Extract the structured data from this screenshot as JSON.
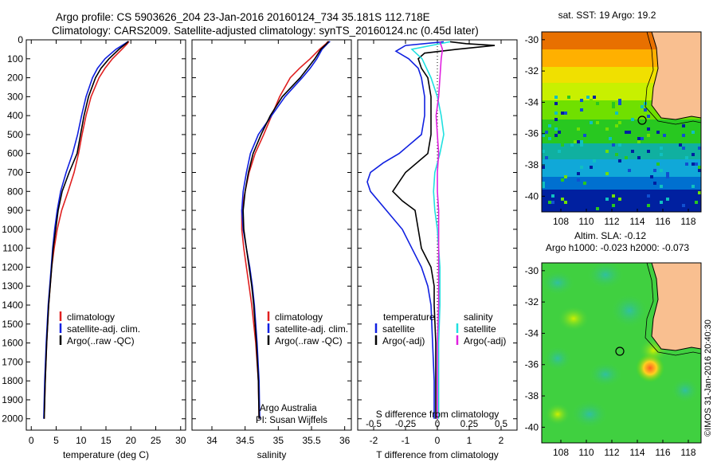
{
  "header": {
    "line1": "Argo profile: CS 5903626_204 23-Jan-2016 20160124_734 35.181S 112.718E",
    "line2": "Climatology: CARS2009. Satellite-adjusted climatology: synTS_20160124.nc (0.45d later)"
  },
  "credit": "Argo Australia",
  "pi": "PI: Susan Wijffels",
  "stamp": "©IMOS 31-Jan-2016 20:40:30",
  "colors": {
    "clim": "#e02020",
    "sat": "#1020e0",
    "argo": "#000000",
    "sat_s": "#20e0e0",
    "argo_s": "#e020e0"
  },
  "chart_data": [
    {
      "type": "line",
      "xlabel": "temperature (deg C)",
      "ylabel": "",
      "xlim": [
        -1,
        31
      ],
      "ylim": [
        2060,
        0
      ],
      "x_ticks": [
        "0",
        "5",
        "10",
        "15",
        "20",
        "25",
        "30"
      ],
      "y_ticks": [
        "0",
        "100",
        "200",
        "300",
        "400",
        "500",
        "600",
        "700",
        "800",
        "900",
        "1000",
        "1100",
        "1200",
        "1300",
        "1400",
        "1500",
        "1600",
        "1700",
        "1800",
        "1900",
        "2000"
      ],
      "legend": [
        "climatology",
        "satellite-adj. clim.",
        "Argo(..raw -QC)"
      ],
      "series": [
        {
          "name": "climatology",
          "color": "#e02020",
          "depth": [
            8,
            20,
            50,
            100,
            150,
            200,
            300,
            400,
            500,
            600,
            700,
            800,
            900,
            1000,
            1100,
            1200,
            1400,
            1600,
            1800,
            2000
          ],
          "values": [
            19.6,
            19.3,
            18.2,
            16.3,
            14.8,
            13.6,
            12.0,
            11.0,
            10.2,
            9.5,
            8.6,
            7.4,
            6.1,
            5.2,
            4.6,
            4.1,
            3.5,
            3.1,
            2.8,
            2.6
          ]
        },
        {
          "name": "satellite-adj. clim.",
          "color": "#1020e0",
          "depth": [
            8,
            20,
            50,
            100,
            150,
            200,
            300,
            400,
            500,
            600,
            700,
            800,
            900,
            1000,
            1100,
            1200,
            1400,
            1600,
            1800,
            2000
          ],
          "values": [
            19.5,
            18.8,
            17.0,
            14.8,
            13.3,
            12.3,
            11.0,
            10.1,
            9.3,
            8.3,
            7.0,
            5.9,
            5.2,
            4.7,
            4.3,
            4.0,
            3.4,
            3.0,
            2.7,
            2.5
          ]
        },
        {
          "name": "Argo(..raw -QC)",
          "color": "#000000",
          "depth": [
            8,
            20,
            50,
            100,
            150,
            200,
            300,
            400,
            500,
            600,
            700,
            800,
            900,
            1000,
            1100,
            1200,
            1400,
            1600,
            1800,
            2000
          ],
          "values": [
            19.5,
            19.0,
            17.6,
            15.6,
            14.0,
            12.9,
            11.5,
            10.6,
            9.9,
            9.2,
            7.6,
            6.2,
            5.4,
            4.9,
            4.4,
            4.1,
            3.5,
            3.1,
            2.8,
            2.6
          ]
        }
      ]
    },
    {
      "type": "line",
      "xlabel": "salinity",
      "ylabel": "",
      "xlim": [
        33.7,
        36.1
      ],
      "ylim": [
        2060,
        0
      ],
      "x_ticks": [
        "34",
        "34.5",
        "35",
        "35.5",
        "36"
      ],
      "legend": [
        "climatology",
        "satellite-adj. clim.",
        "Argo(..raw -QC)"
      ],
      "series": [
        {
          "name": "climatology",
          "color": "#e02020",
          "depth": [
            8,
            20,
            50,
            100,
            150,
            200,
            300,
            400,
            500,
            600,
            700,
            800,
            900,
            1000,
            1100,
            1200,
            1300,
            1400,
            1600,
            1800,
            2000
          ],
          "values": [
            35.75,
            35.72,
            35.62,
            35.48,
            35.32,
            35.18,
            35.02,
            34.9,
            34.78,
            34.65,
            34.56,
            34.5,
            34.45,
            34.45,
            34.48,
            34.52,
            34.56,
            34.6,
            34.66,
            34.7,
            34.71
          ]
        },
        {
          "name": "satellite-adj. clim.",
          "color": "#1020e0",
          "depth": [
            8,
            20,
            50,
            100,
            150,
            200,
            300,
            400,
            500,
            600,
            700,
            800,
            900,
            1000,
            1100,
            1200,
            1300,
            1400,
            1600,
            1800,
            2000
          ],
          "values": [
            35.78,
            35.74,
            35.66,
            35.58,
            35.48,
            35.36,
            35.1,
            34.9,
            34.7,
            34.58,
            34.52,
            34.47,
            34.45,
            34.47,
            34.52,
            34.57,
            34.61,
            34.64,
            34.68,
            34.71,
            34.72
          ]
        },
        {
          "name": "Argo(..raw -QC)",
          "color": "#000000",
          "depth": [
            8,
            20,
            50,
            100,
            150,
            200,
            300,
            400,
            500,
            600,
            700,
            800,
            900,
            1000,
            1100,
            1200,
            1300,
            1400,
            1600,
            1800,
            2000
          ],
          "values": [
            35.76,
            35.73,
            35.64,
            35.55,
            35.44,
            35.33,
            35.06,
            34.88,
            34.74,
            34.62,
            34.55,
            34.5,
            34.47,
            34.48,
            34.52,
            34.56,
            34.6,
            34.63,
            34.67,
            34.7,
            34.71
          ]
        }
      ]
    },
    {
      "type": "line",
      "xlabel": "T difference from climatology",
      "top_label": "S difference from climatology",
      "xlim": [
        -2.5,
        2.5
      ],
      "ylim": [
        2060,
        0
      ],
      "x_ticks": [
        "-2",
        "-1",
        "0",
        "1",
        "2"
      ],
      "s_ticks": [
        "-0.5",
        "-0.25",
        "0",
        "0.25",
        "0.5"
      ],
      "legend_left_title": "temperature",
      "legend_right_title": "salinity",
      "legend_left": [
        "satellite",
        "Argo(-adj)"
      ],
      "legend_right": [
        "satellite",
        "Argo(-adj)"
      ],
      "series": [
        {
          "name": "satellite",
          "kind": "T",
          "color": "#1020e0",
          "depth": [
            10,
            30,
            60,
            100,
            150,
            200,
            300,
            400,
            500,
            600,
            650,
            700,
            750,
            800,
            900,
            1000,
            1100,
            1200,
            1300,
            1400,
            1600,
            1800,
            2000
          ],
          "values": [
            0.2,
            -1.0,
            -1.3,
            -0.9,
            -0.6,
            -0.5,
            -0.4,
            -0.4,
            -0.5,
            -1.2,
            -1.7,
            -2.1,
            -2.2,
            -2.1,
            -1.6,
            -1.1,
            -0.8,
            -0.5,
            -0.3,
            -0.2,
            -0.15,
            -0.1,
            -0.1
          ]
        },
        {
          "name": "Argo(-adj)",
          "kind": "T",
          "color": "#000000",
          "depth": [
            10,
            20,
            30,
            50,
            70,
            100,
            150,
            200,
            300,
            400,
            500,
            600,
            700,
            800,
            850,
            900,
            1000,
            1100,
            1200,
            1300,
            1400,
            1600,
            1800,
            2000
          ],
          "values": [
            0.4,
            0.9,
            1.8,
            0.6,
            -0.4,
            -0.6,
            -0.5,
            -0.3,
            -0.2,
            -0.2,
            -0.2,
            -0.3,
            -1.0,
            -1.4,
            -1.1,
            -0.7,
            -0.6,
            -0.5,
            -0.2,
            -0.1,
            -0.1,
            -0.05,
            -0.05,
            -0.05
          ]
        },
        {
          "name": "satellite",
          "kind": "S",
          "color": "#20e0e0",
          "depth": [
            10,
            50,
            100,
            200,
            300,
            400,
            500,
            600,
            700,
            800,
            900,
            1000,
            1200,
            1400,
            1600,
            1800,
            2000
          ],
          "values": [
            0.1,
            -0.2,
            -0.12,
            -0.05,
            0.0,
            0.03,
            0.05,
            0.02,
            -0.02,
            -0.03,
            -0.02,
            0.0,
            0.02,
            0.02,
            0.01,
            0.01,
            0.01
          ]
        },
        {
          "name": "Argo(-adj)",
          "kind": "S",
          "color": "#e020e0",
          "depth": [
            10,
            50,
            100,
            200,
            300,
            400,
            500,
            600,
            700,
            800,
            900,
            1000,
            1200,
            1400,
            1600,
            1800,
            2000
          ],
          "values": [
            0.02,
            0.04,
            0.03,
            0.02,
            0.01,
            -0.01,
            0.0,
            0.01,
            0.0,
            0.0,
            0.01,
            0.01,
            0.01,
            0.01,
            0.0,
            0.0,
            0.0
          ]
        }
      ]
    }
  ],
  "maps": [
    {
      "title": "sat. SST: 19 Argo: 19.2",
      "x_ticks": [
        "108",
        "110",
        "112",
        "114",
        "116",
        "118"
      ],
      "y_ticks": [
        "-30",
        "-32",
        "-34",
        "-36",
        "-38",
        "-40"
      ],
      "xlim": [
        106.5,
        119
      ],
      "ylim": [
        -41,
        -29.5
      ],
      "marker": {
        "lon": 112.718,
        "lat": -35.181
      }
    },
    {
      "title": "Altim. SLA: -0.12",
      "subtitle": "Argo h1000: -0.023 h2000: -0.073",
      "x_ticks": [
        "108",
        "110",
        "112",
        "114",
        "116",
        "118"
      ],
      "y_ticks": [
        "-30",
        "-32",
        "-34",
        "-36",
        "-38",
        "-40"
      ],
      "xlim": [
        106.5,
        119
      ],
      "ylim": [
        -41,
        -29.5
      ],
      "marker": {
        "lon": 112.718,
        "lat": -35.181
      }
    }
  ]
}
